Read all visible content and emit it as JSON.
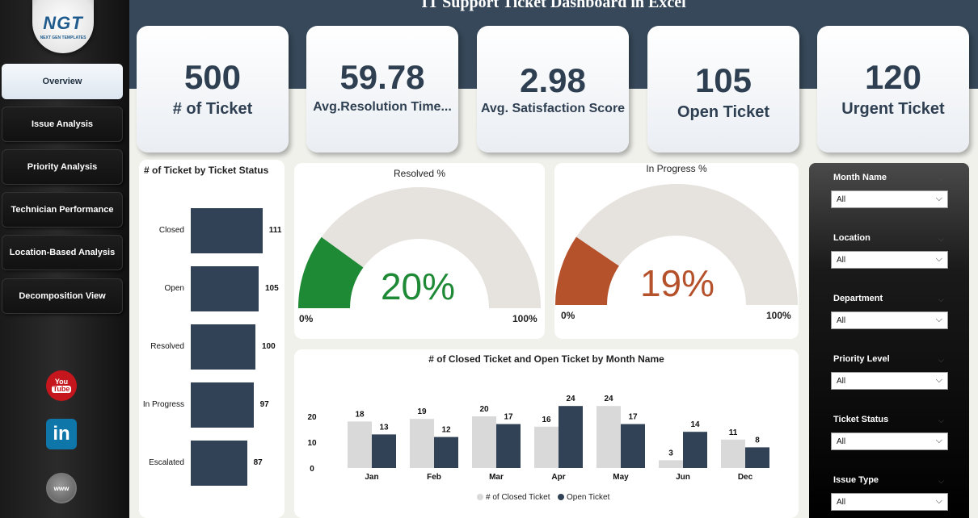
{
  "title": "IT Support Ticket Dashboard in Excel",
  "logo": {
    "text": "NGT",
    "subtitle": "NEXT GEN TEMPLATES"
  },
  "nav": [
    "Overview",
    "Issue Analysis",
    "Priority Analysis",
    "Technician Performance",
    "Location-Based Analysis",
    "Decomposition View"
  ],
  "social": {
    "youtube_top": "You",
    "youtube_bottom": "Tube",
    "linkedin": "in",
    "web": "www"
  },
  "kpis": [
    {
      "value": "500",
      "label": "# of Ticket"
    },
    {
      "value": "59.78",
      "label": "Avg.Resolution Time..."
    },
    {
      "value": "2.98",
      "label": "Avg. Satisfaction Score"
    },
    {
      "value": "105",
      "label": "Open Ticket"
    },
    {
      "value": "120",
      "label": "Urgent Ticket"
    }
  ],
  "status_chart": {
    "title": "# of Ticket by Ticket Status",
    "categories": [
      "Closed",
      "Open",
      "Resolved",
      "In Progress",
      "Escalated"
    ],
    "values": [
      111,
      105,
      100,
      97,
      87
    ],
    "bar_color": "#314256"
  },
  "gauges": [
    {
      "title": "Resolved %",
      "value": 20,
      "label": "20%",
      "min_label": "0%",
      "max_label": "100%",
      "color": "#1e8a36"
    },
    {
      "title": "In Progress %",
      "value": 19,
      "label": "19%",
      "min_label": "0%",
      "max_label": "100%",
      "color": "#b5512b"
    }
  ],
  "chart_data": {
    "type": "bar",
    "title": "# of Closed Ticket and Open Ticket by Month Name",
    "categories": [
      "Jan",
      "Feb",
      "Mar",
      "Apr",
      "May",
      "Jun",
      "Dec"
    ],
    "series": [
      {
        "name": "# of Closed Ticket",
        "values": [
          18,
          19,
          20,
          16,
          24,
          3,
          11
        ],
        "color": "#d9d9d9"
      },
      {
        "name": "Open Ticket",
        "values": [
          13,
          12,
          17,
          24,
          17,
          14,
          8
        ],
        "color": "#314256"
      }
    ],
    "yticks": [
      "0",
      "10",
      "20"
    ],
    "ylim": [
      0,
      26
    ],
    "legend": "bottom"
  },
  "filters": [
    {
      "label": "Month Name",
      "value": "All"
    },
    {
      "label": "Location",
      "value": "All"
    },
    {
      "label": "Department",
      "value": "All"
    },
    {
      "label": "Priority Level",
      "value": "All"
    },
    {
      "label": "Ticket Status",
      "value": "All"
    },
    {
      "label": "Issue Type",
      "value": "All"
    }
  ]
}
